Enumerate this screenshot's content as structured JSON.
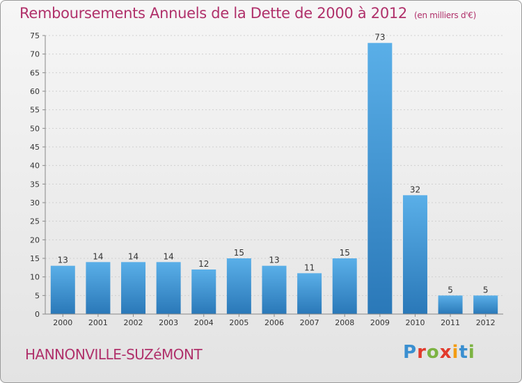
{
  "header": {
    "title": "Remboursements Annuels de la Dette de 2000 à 2012",
    "unit": "(en milliers d'€)"
  },
  "footer": {
    "commune": "HANNONVILLE-SUZéMONT",
    "logo_letters": [
      "P",
      "r",
      "o",
      "x",
      "i",
      "t",
      "i"
    ]
  },
  "colors": {
    "title": "#b0306a",
    "bar_top": "#5aafe8",
    "bar_bottom": "#2a78b8"
  },
  "chart_data": {
    "type": "bar",
    "title": "Remboursements Annuels de la Dette de 2000 à 2012",
    "categories": [
      "2000",
      "2001",
      "2002",
      "2003",
      "2004",
      "2005",
      "2006",
      "2007",
      "2008",
      "2009",
      "2010",
      "2011",
      "2012"
    ],
    "values": [
      13,
      14,
      14,
      14,
      12,
      15,
      13,
      11,
      15,
      73,
      32,
      5,
      5
    ],
    "data_labels": [
      "13",
      "14",
      "14",
      "14",
      "12",
      "15",
      "13",
      "11",
      "15",
      "73",
      "32",
      "5",
      "5"
    ],
    "ylim": [
      0,
      75
    ],
    "yticks": [
      0,
      5,
      10,
      15,
      20,
      25,
      30,
      35,
      40,
      45,
      50,
      55,
      60,
      65,
      70,
      75
    ],
    "xlabel": "",
    "ylabel": "",
    "grid": true
  }
}
